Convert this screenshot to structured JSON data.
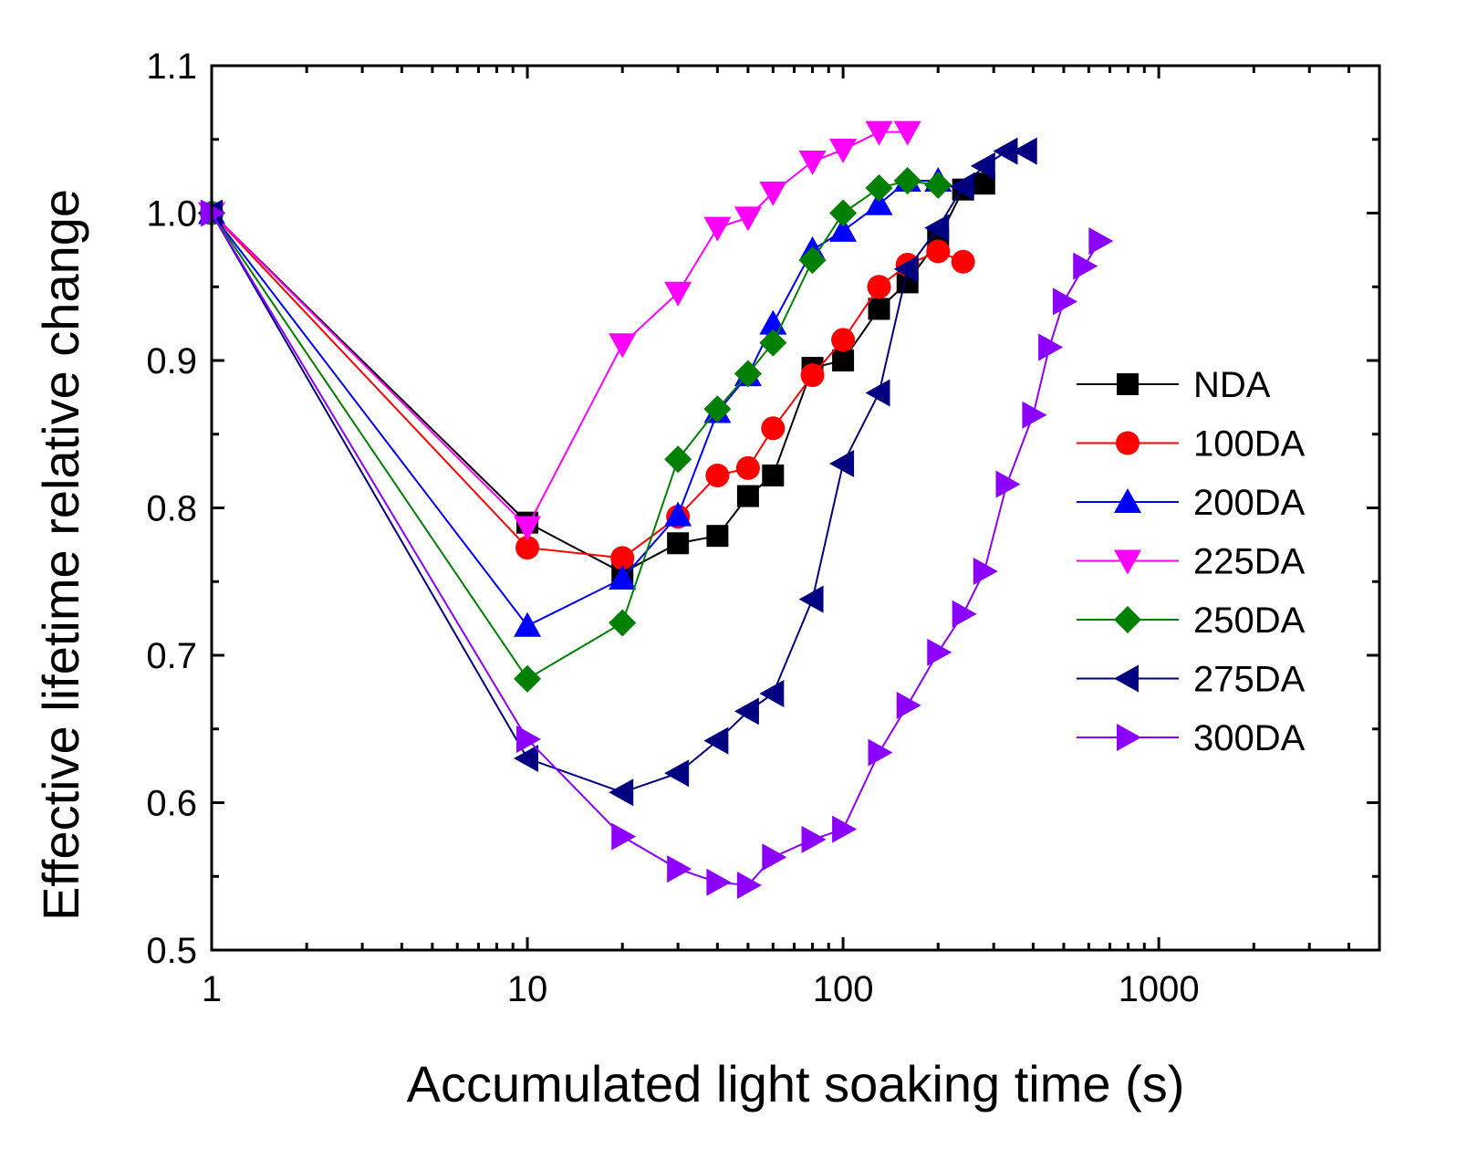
{
  "chart_data": {
    "type": "line",
    "xscale": "log",
    "xlabel": "Accumulated light soaking  time (s)",
    "ylabel": "Effective lifetime relative change",
    "xlim": [
      1,
      5000
    ],
    "ylim": [
      0.5,
      1.1
    ],
    "xticks": [
      1,
      10,
      100,
      1000
    ],
    "xtick_labels": [
      "1",
      "10",
      "100",
      "1000"
    ],
    "yticks": [
      0.5,
      0.6,
      0.7,
      0.8,
      0.9,
      1.0,
      1.1
    ],
    "ytick_labels": [
      "0.5",
      "0.6",
      "0.7",
      "0.8",
      "0.9",
      "1.0",
      "1.1"
    ],
    "legend_position": "right",
    "series": [
      {
        "name": "NDA",
        "color": "#000000",
        "marker": "square",
        "x": [
          1,
          10,
          20,
          30,
          40,
          50,
          60,
          80,
          100,
          130,
          160,
          200,
          240,
          280
        ],
        "y": [
          1.0,
          0.79,
          0.756,
          0.776,
          0.781,
          0.808,
          0.822,
          0.895,
          0.9,
          0.935,
          0.953,
          0.982,
          1.016,
          1.02
        ]
      },
      {
        "name": "100DA",
        "color": "#ff0000",
        "marker": "circle",
        "x": [
          1,
          10,
          20,
          30,
          40,
          50,
          60,
          80,
          100,
          130,
          160,
          200,
          240
        ],
        "y": [
          1.0,
          0.773,
          0.766,
          0.794,
          0.822,
          0.827,
          0.854,
          0.89,
          0.914,
          0.95,
          0.965,
          0.974,
          0.967
        ]
      },
      {
        "name": "200DA",
        "color": "#0000ff",
        "marker": "triangle-up",
        "x": [
          1,
          10,
          20,
          30,
          40,
          50,
          60,
          80,
          100,
          130,
          160,
          200
        ],
        "y": [
          1.0,
          0.72,
          0.752,
          0.795,
          0.865,
          0.89,
          0.925,
          0.975,
          0.988,
          1.006,
          1.022,
          1.022
        ]
      },
      {
        "name": "225DA",
        "color": "#ff00ff",
        "marker": "triangle-down",
        "x": [
          1,
          10,
          20,
          30,
          40,
          50,
          60,
          80,
          100,
          130,
          160
        ],
        "y": [
          1.0,
          0.787,
          0.911,
          0.946,
          0.99,
          0.997,
          1.014,
          1.035,
          1.043,
          1.055,
          1.055
        ]
      },
      {
        "name": "250DA",
        "color": "#008000",
        "marker": "diamond",
        "x": [
          1,
          10,
          20,
          30,
          40,
          50,
          60,
          80,
          100,
          130,
          160,
          200
        ],
        "y": [
          1.0,
          0.684,
          0.722,
          0.833,
          0.867,
          0.891,
          0.912,
          0.968,
          1.0,
          1.017,
          1.022,
          1.019
        ]
      },
      {
        "name": "275DA",
        "color": "#000080",
        "marker": "triangle-left",
        "x": [
          1,
          10,
          20,
          30,
          40,
          50,
          60,
          80,
          100,
          130,
          160,
          200,
          240,
          280,
          330,
          380
        ],
        "y": [
          1.0,
          0.63,
          0.607,
          0.62,
          0.642,
          0.662,
          0.674,
          0.738,
          0.83,
          0.878,
          0.962,
          0.99,
          1.018,
          1.032,
          1.042,
          1.042
        ]
      },
      {
        "name": "300DA",
        "color": "#8b00ff",
        "marker": "triangle-right",
        "x": [
          1,
          10,
          20,
          30,
          40,
          50,
          60,
          80,
          100,
          130,
          160,
          200,
          240,
          280,
          330,
          400,
          450,
          500,
          580,
          650
        ],
        "y": [
          1.0,
          0.643,
          0.577,
          0.555,
          0.546,
          0.544,
          0.563,
          0.575,
          0.582,
          0.634,
          0.666,
          0.702,
          0.728,
          0.757,
          0.816,
          0.863,
          0.909,
          0.94,
          0.964,
          0.981
        ]
      }
    ]
  }
}
